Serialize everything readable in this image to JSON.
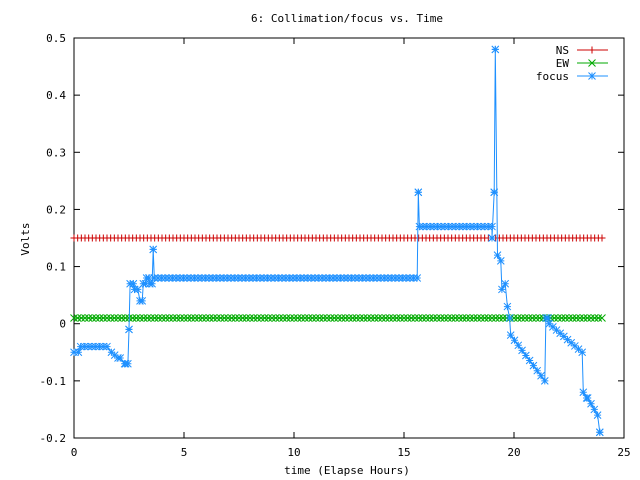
{
  "chart_data": {
    "type": "line",
    "title": "6: Collimation/focus vs. Time",
    "xlabel": "time (Elapse Hours)",
    "ylabel": "Volts",
    "xlim": [
      0,
      25
    ],
    "ylim": [
      -0.2,
      0.5
    ],
    "x_ticks": [
      "0",
      "5",
      "10",
      "15",
      "20",
      "25"
    ],
    "y_ticks": [
      "-0.2",
      "-0.1",
      "0",
      "0.1",
      "0.2",
      "0.3",
      "0.4",
      "0.5"
    ],
    "grid": false,
    "legend_position": "top-right",
    "colors": {
      "NS": "#cc0000",
      "EW": "#00aa00",
      "focus": "#1e90ff"
    },
    "series": [
      {
        "name": "NS",
        "marker": "plus",
        "constant": 0.15,
        "x_start": 0,
        "x_end": 24,
        "step": 0.1667
      },
      {
        "name": "EW",
        "marker": "cross",
        "constant": 0.01,
        "x_start": 0,
        "x_end": 24,
        "step": 0.1667
      },
      {
        "name": "focus",
        "marker": "star",
        "step": 0.1667,
        "segments": [
          {
            "x": [
              0,
              0.2
            ],
            "y": [
              -0.05,
              -0.05
            ]
          },
          {
            "x": [
              0.3,
              1.5
            ],
            "y": [
              -0.04,
              -0.04
            ]
          },
          {
            "x": [
              1.7,
              2.0
            ],
            "y": [
              -0.05,
              -0.06
            ]
          },
          {
            "x": [
              2.1,
              2.3
            ],
            "y": [
              -0.06,
              -0.07
            ]
          },
          {
            "x": [
              2.35,
              2.45
            ],
            "y": [
              -0.07,
              -0.07
            ]
          },
          {
            "x": [
              2.5,
              2.5
            ],
            "y": [
              -0.01,
              -0.01
            ]
          },
          {
            "x": [
              2.55,
              2.7
            ],
            "y": [
              0.07,
              0.07
            ]
          },
          {
            "x": [
              2.75,
              2.9
            ],
            "y": [
              0.06,
              0.06
            ]
          },
          {
            "x": [
              3.0,
              3.1
            ],
            "y": [
              0.04,
              0.04
            ]
          },
          {
            "x": [
              3.15,
              3.25
            ],
            "y": [
              0.07,
              0.07
            ]
          },
          {
            "x": [
              3.3,
              3.4
            ],
            "y": [
              0.08,
              0.08
            ]
          },
          {
            "x": [
              3.45,
              3.55
            ],
            "y": [
              0.07,
              0.07
            ]
          },
          {
            "x": [
              3.6,
              3.6
            ],
            "y": [
              0.13,
              0.13
            ]
          },
          {
            "x": [
              3.65,
              15.6
            ],
            "y": [
              0.08,
              0.08
            ]
          },
          {
            "x": [
              15.65,
              15.65
            ],
            "y": [
              0.23,
              0.23
            ]
          },
          {
            "x": [
              15.7,
              19.0
            ],
            "y": [
              0.17,
              0.17
            ]
          },
          {
            "x": [
              19.0,
              19.0
            ],
            "y": [
              0.15,
              0.15
            ]
          },
          {
            "x": [
              19.1,
              19.1
            ],
            "y": [
              0.23,
              0.23
            ]
          },
          {
            "x": [
              19.15,
              19.15
            ],
            "y": [
              0.48,
              0.48
            ]
          },
          {
            "x": [
              19.25,
              19.4
            ],
            "y": [
              0.12,
              0.11
            ]
          },
          {
            "x": [
              19.45,
              19.6
            ],
            "y": [
              0.06,
              0.07
            ]
          },
          {
            "x": [
              19.7,
              19.8
            ],
            "y": [
              0.03,
              0.01
            ]
          },
          {
            "x": [
              19.85,
              21.4
            ],
            "y": [
              -0.02,
              -0.1
            ]
          },
          {
            "x": [
              21.45,
              21.55
            ],
            "y": [
              0.01,
              0.01
            ]
          },
          {
            "x": [
              21.6,
              23.1
            ],
            "y": [
              0.0,
              -0.05
            ]
          },
          {
            "x": [
              23.15,
              23.3
            ],
            "y": [
              -0.12,
              -0.13
            ]
          },
          {
            "x": [
              23.35,
              23.8
            ],
            "y": [
              -0.13,
              -0.16
            ]
          },
          {
            "x": [
              23.9,
              23.9
            ],
            "y": [
              -0.19,
              -0.19
            ]
          }
        ]
      }
    ]
  }
}
